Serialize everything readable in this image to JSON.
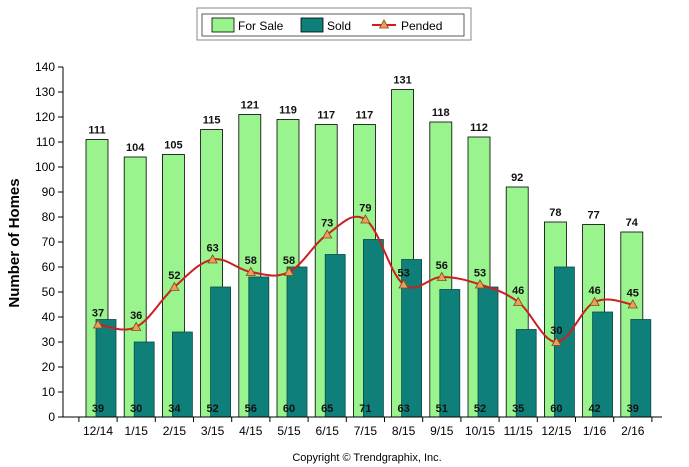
{
  "chart_data": {
    "type": "bar",
    "ylabel": "Number of Homes",
    "xlabel": "",
    "ylim": [
      0,
      140
    ],
    "yticks": [
      0,
      10,
      20,
      30,
      40,
      50,
      60,
      70,
      80,
      90,
      100,
      110,
      120,
      130,
      140
    ],
    "grid": false,
    "legend_position": "top-center",
    "categories": [
      "12/14",
      "1/15",
      "2/15",
      "3/15",
      "4/15",
      "5/15",
      "6/15",
      "7/15",
      "8/15",
      "9/15",
      "10/15",
      "11/15",
      "12/15",
      "1/16",
      "2/16"
    ],
    "series": [
      {
        "name": "For Sale",
        "kind": "bar",
        "color": "#99f48e",
        "values": [
          111,
          104,
          105,
          115,
          121,
          119,
          117,
          117,
          131,
          118,
          112,
          92,
          78,
          77,
          74
        ]
      },
      {
        "name": "Sold",
        "kind": "bar",
        "color": "#0f7f7a",
        "values": [
          39,
          30,
          34,
          52,
          56,
          60,
          65,
          71,
          63,
          51,
          52,
          35,
          60,
          42,
          39
        ]
      },
      {
        "name": "Pended",
        "kind": "line",
        "color": "#cc2020",
        "marker_color": "#e8a060",
        "values": [
          37,
          36,
          52,
          63,
          58,
          58,
          73,
          79,
          53,
          56,
          53,
          46,
          30,
          46,
          45
        ]
      }
    ]
  },
  "footer": {
    "copyright": "Copyright © Trendgraphix, Inc."
  }
}
